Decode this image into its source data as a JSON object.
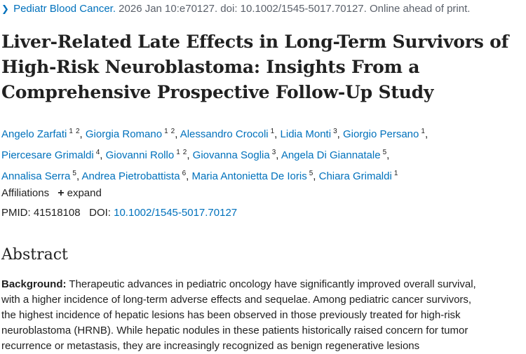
{
  "citation": {
    "journal": "Pediatr Blood Cancer.",
    "details": " 2026 Jan 10:e70127. doi: 10.1002/1545-5017.70127. Online ahead of print."
  },
  "title_lines": [
    "Liver-Related Late Effects in Long-Term Survivors of",
    "High-Risk Neuroblastoma: Insights From a",
    "Comprehensive Prospective Follow-Up Study"
  ],
  "authors": [
    {
      "name": "Angelo Zarfati",
      "affs": [
        "1",
        "2"
      ]
    },
    {
      "name": "Giorgia Romano",
      "affs": [
        "1",
        "2"
      ]
    },
    {
      "name": "Alessandro Crocoli",
      "affs": [
        "1"
      ]
    },
    {
      "name": "Lidia Monti",
      "affs": [
        "3"
      ]
    },
    {
      "name": "Giorgio Persano",
      "affs": [
        "1"
      ]
    },
    {
      "name": "Piercesare Grimaldi",
      "affs": [
        "4"
      ]
    },
    {
      "name": "Giovanni Rollo",
      "affs": [
        "1",
        "2"
      ]
    },
    {
      "name": "Giovanna Soglia",
      "affs": [
        "3"
      ]
    },
    {
      "name": "Angela Di Giannatale",
      "affs": [
        "5"
      ]
    },
    {
      "name": "Annalisa Serra",
      "affs": [
        "5"
      ]
    },
    {
      "name": "Andrea Pietrobattista",
      "affs": [
        "6"
      ]
    },
    {
      "name": "Maria Antonietta De Ioris",
      "affs": [
        "5"
      ]
    },
    {
      "name": "Chiara Grimaldi",
      "affs": [
        "1"
      ]
    }
  ],
  "affiliations": {
    "label": "Affiliations",
    "expand_label": "expand"
  },
  "ids": {
    "pmid_label": "PMID:",
    "pmid": "41518108",
    "doi_label": "DOI:",
    "doi": "10.1002/1545-5017.70127"
  },
  "abstract": {
    "heading": "Abstract",
    "background_label": "Background:",
    "lines": [
      " Therapeutic advances in pediatric oncology have significantly improved overall survival,",
      "with a higher incidence of long-term adverse effects and sequelae. Among pediatric cancer survivors,",
      "the highest incidence of hepatic lesions has been observed in those previously treated for high-risk",
      "neuroblastoma (HRNB). While hepatic nodules in these patients historically raised concern for tumor",
      "recurrence or metastasis, they are increasingly recognized as benign regenerative lesions"
    ]
  }
}
